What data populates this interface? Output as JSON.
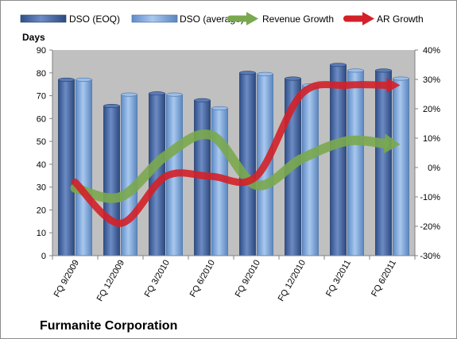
{
  "chart_data": {
    "type": "bar",
    "title": "Furmanite Corporation",
    "ylabel": "Days",
    "ylim": [
      0,
      90
    ],
    "y2lim": [
      -30,
      40
    ],
    "y_ticks": [
      "0",
      "10",
      "20",
      "30",
      "40",
      "50",
      "60",
      "70",
      "80",
      "90"
    ],
    "y2_ticks": [
      "-30%",
      "-20%",
      "-10%",
      "0%",
      "10%",
      "20%",
      "30%",
      "40%"
    ],
    "categories": [
      "FQ 9/2009",
      "FQ 12/2009",
      "FQ 3/2010",
      "FQ 6/2010",
      "FQ 9/2010",
      "FQ 12/2010",
      "FQ 3/2011",
      "FQ 6/2011"
    ],
    "series": [
      {
        "name": "DSO (EOQ)",
        "values": [
          77,
          65.5,
          71,
          68,
          80,
          77.5,
          83.5,
          81
        ]
      },
      {
        "name": "DSO (average)",
        "values": [
          77,
          70.5,
          70.5,
          64.5,
          79.5,
          74.5,
          81,
          77.5
        ]
      },
      {
        "name": "Revenue Growth",
        "axis": "secondary",
        "values": [
          -7,
          -10,
          4,
          11,
          -6,
          3,
          9,
          8
        ]
      },
      {
        "name": "AR Growth",
        "axis": "secondary",
        "values": [
          -5,
          -19,
          -3,
          -3,
          -3,
          25,
          28,
          28
        ]
      }
    ],
    "legend_position": "top",
    "grid": false,
    "plot_background": "#c0c0c0",
    "colors": {
      "dso_eoq": "#4a6aa6",
      "dso_average": "#7fa6d8",
      "revenue_growth": "#7aa84e",
      "ar_growth": "#d42028"
    }
  }
}
